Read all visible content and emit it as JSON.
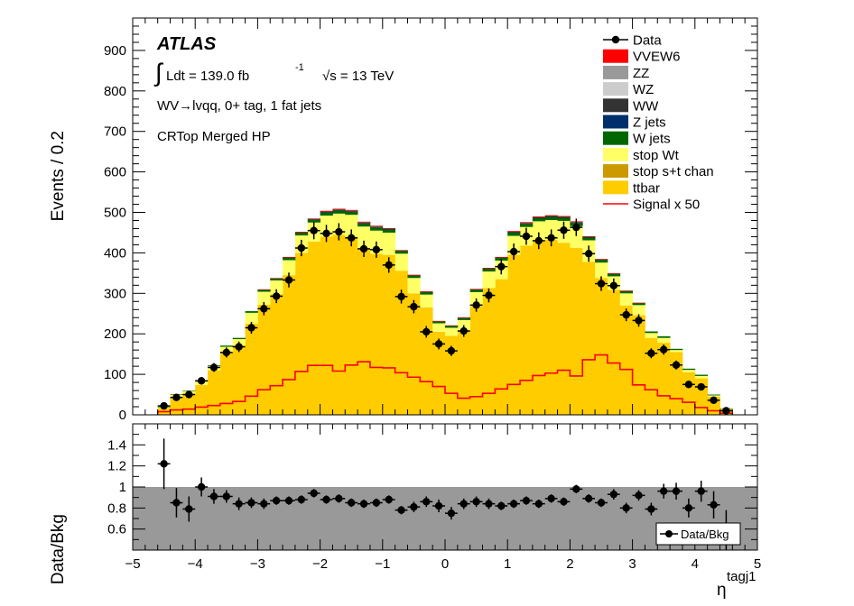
{
  "chart_data": {
    "type": "bar",
    "stacked": true,
    "atlas_label": "ATLAS",
    "lumi_prefix": "Ldt = 139.0 fb",
    "lumi_exp": "-1",
    "energy": "√s = 13 TeV",
    "region_line1": "WV→lvqq, 0+ tag, 1 fat jets",
    "region_line2": "CRTop Merged HP",
    "ylabel_top": "Events / 0.2",
    "ylabel_bottom": "Data/Bkg",
    "xlabel": "η",
    "xlabel_sup": "tagj1",
    "xlim": [
      -5,
      5
    ],
    "ylim_top": [
      0,
      980
    ],
    "ylim_bottom": [
      0.4,
      1.6
    ],
    "xticks": [
      -5,
      -4,
      -3,
      -2,
      -1,
      0,
      1,
      2,
      3,
      4,
      5
    ],
    "xtick_labels": [
      "−5",
      "−4",
      "−3",
      "−2",
      "−1",
      "0",
      "1",
      "2",
      "3",
      "4",
      "5"
    ],
    "yticks_top": [
      0,
      100,
      200,
      300,
      400,
      500,
      600,
      700,
      800,
      900
    ],
    "yticks_bottom": [
      0.6,
      0.8,
      1,
      1.2,
      1.4
    ],
    "ytick_labels_bottom": [
      "0.6",
      "0.8",
      "1",
      "1.2",
      "1.4"
    ],
    "bin_edges": [
      -4.6,
      -4.4,
      -4.2,
      -4.0,
      -3.8,
      -3.6,
      -3.4,
      -3.2,
      -3.0,
      -2.8,
      -2.6,
      -2.4,
      -2.2,
      -2.0,
      -1.8,
      -1.6,
      -1.4,
      -1.2,
      -1.0,
      -0.8,
      -0.6,
      -0.4,
      -0.2,
      0.0,
      0.2,
      0.4,
      0.6,
      0.8,
      1.0,
      1.2,
      1.4,
      1.6,
      1.8,
      2.0,
      2.2,
      2.4,
      2.6,
      2.8,
      3.0,
      3.2,
      3.4,
      3.6,
      3.8,
      4.0,
      4.2,
      4.4,
      4.6
    ],
    "bin_centers": [
      -4.5,
      -4.3,
      -4.1,
      -3.9,
      -3.7,
      -3.5,
      -3.3,
      -3.1,
      -2.9,
      -2.7,
      -2.5,
      -2.3,
      -2.1,
      -1.9,
      -1.7,
      -1.5,
      -1.3,
      -1.1,
      -0.9,
      -0.7,
      -0.5,
      -0.3,
      -0.1,
      0.1,
      0.3,
      0.5,
      0.7,
      0.9,
      1.1,
      1.3,
      1.5,
      1.7,
      1.9,
      2.1,
      2.3,
      2.5,
      2.7,
      2.9,
      3.1,
      3.3,
      3.5,
      3.7,
      3.9,
      4.1,
      4.3,
      4.5
    ],
    "series": [
      {
        "name": "ttbar",
        "color": "#ffcc00",
        "values": [
          17,
          45,
          53,
          74,
          110,
          155,
          172,
          225,
          272,
          298,
          345,
          400,
          428,
          440,
          445,
          440,
          410,
          398,
          395,
          356,
          300,
          265,
          205,
          195,
          210,
          268,
          313,
          335,
          395,
          418,
          430,
          432,
          425,
          412,
          378,
          338,
          309,
          270,
          246,
          190,
          178,
          155,
          105,
          90,
          45,
          14
        ]
      },
      {
        "name": "stop s+t chan",
        "color": "#cc9900",
        "values": [
          0,
          0,
          0,
          0,
          0,
          0,
          0,
          0,
          0,
          0,
          0,
          0,
          0,
          0,
          0,
          0,
          0,
          0,
          0,
          0,
          0,
          0,
          0,
          0,
          0,
          0,
          0,
          0,
          0,
          0,
          0,
          0,
          0,
          0,
          0,
          0,
          0,
          0,
          0,
          0,
          0,
          0,
          0,
          0,
          0,
          0
        ]
      },
      {
        "name": "stop Wt",
        "color": "#ffff66",
        "values": [
          2,
          5,
          6,
          8,
          10,
          13,
          15,
          27,
          32,
          34,
          37,
          43,
          47,
          52,
          52,
          54,
          55,
          57,
          55,
          42,
          38,
          32,
          21,
          20,
          24,
          35,
          41,
          46,
          47,
          46,
          48,
          49,
          54,
          54,
          53,
          38,
          33,
          30,
          25,
          12,
          12,
          5,
          6,
          6,
          3,
          1
        ]
      },
      {
        "name": "W jets",
        "color": "#006600",
        "values": [
          1,
          1,
          1,
          2,
          2,
          3,
          3,
          4,
          5,
          5,
          6,
          7,
          7,
          8,
          8,
          8,
          8,
          8,
          8,
          7,
          6,
          6,
          5,
          5,
          5,
          6,
          7,
          7,
          8,
          8,
          8,
          8,
          8,
          8,
          7,
          7,
          6,
          6,
          5,
          4,
          4,
          3,
          3,
          3,
          2,
          1
        ]
      },
      {
        "name": "Z jets",
        "color": "#002f6c",
        "values": [
          0,
          0,
          0,
          0,
          0,
          0,
          0,
          0,
          0,
          0,
          0,
          0,
          1,
          1,
          1,
          1,
          1,
          1,
          1,
          0,
          0,
          0,
          0,
          0,
          0,
          0,
          0,
          0,
          1,
          1,
          1,
          1,
          1,
          1,
          1,
          0,
          0,
          0,
          0,
          0,
          0,
          0,
          0,
          0,
          0,
          0
        ]
      },
      {
        "name": "WW",
        "color": "#333333",
        "values": [
          0,
          0,
          0,
          0,
          0,
          0,
          0,
          0,
          0,
          0,
          1,
          1,
          1,
          1,
          1,
          1,
          1,
          1,
          1,
          1,
          1,
          1,
          0,
          0,
          1,
          1,
          1,
          1,
          1,
          1,
          1,
          1,
          1,
          1,
          1,
          1,
          1,
          0,
          0,
          0,
          0,
          0,
          0,
          0,
          0,
          0
        ]
      },
      {
        "name": "WZ",
        "color": "#cccccc",
        "values": [
          0,
          0,
          0,
          0,
          0,
          0,
          0,
          0,
          0,
          0,
          0,
          0,
          0,
          0,
          0,
          0,
          0,
          0,
          0,
          0,
          0,
          0,
          0,
          0,
          0,
          0,
          0,
          0,
          0,
          0,
          0,
          0,
          0,
          0,
          0,
          0,
          0,
          0,
          0,
          0,
          0,
          0,
          0,
          0,
          0,
          0
        ]
      },
      {
        "name": "ZZ",
        "color": "#999999",
        "values": [
          0,
          0,
          0,
          0,
          0,
          0,
          0,
          0,
          0,
          0,
          0,
          0,
          0,
          0,
          0,
          0,
          0,
          0,
          0,
          0,
          0,
          0,
          0,
          0,
          0,
          0,
          0,
          0,
          0,
          0,
          0,
          0,
          0,
          0,
          0,
          0,
          0,
          0,
          0,
          0,
          0,
          0,
          0,
          0,
          0,
          0
        ]
      },
      {
        "name": "VVEW6",
        "color": "#ff0000",
        "values": [
          0,
          0,
          0,
          0,
          0,
          0,
          0,
          0,
          1,
          1,
          1,
          1,
          1,
          2,
          2,
          2,
          2,
          2,
          1,
          1,
          1,
          1,
          1,
          1,
          1,
          1,
          1,
          1,
          2,
          2,
          2,
          2,
          2,
          2,
          1,
          1,
          1,
          1,
          1,
          0,
          0,
          0,
          0,
          0,
          0,
          0
        ]
      }
    ],
    "data": {
      "name": "Data",
      "values": [
        22,
        43,
        50,
        84,
        117,
        154,
        168,
        215,
        262,
        293,
        333,
        412,
        455,
        448,
        452,
        437,
        410,
        408,
        370,
        292,
        267,
        205,
        175,
        158,
        207,
        271,
        295,
        366,
        403,
        441,
        430,
        437,
        456,
        463,
        398,
        324,
        319,
        247,
        233,
        152,
        161,
        123,
        75,
        69,
        36,
        10
      ]
    },
    "signal": {
      "name": "Signal x 50",
      "color": "#ff0000",
      "values": [
        8,
        12,
        14,
        19,
        23,
        28,
        33,
        46,
        62,
        72,
        87,
        107,
        122,
        122,
        108,
        123,
        131,
        117,
        116,
        104,
        93,
        82,
        70,
        53,
        41,
        45,
        53,
        64,
        75,
        85,
        97,
        103,
        110,
        96,
        136,
        148,
        128,
        112,
        74,
        62,
        47,
        40,
        31,
        18,
        10,
        4
      ]
    },
    "ratio": {
      "name": "Data/Bkg",
      "values": [
        1.22,
        0.85,
        0.79,
        1.0,
        0.91,
        0.91,
        0.84,
        0.85,
        0.84,
        0.87,
        0.87,
        0.88,
        0.94,
        0.88,
        0.89,
        0.85,
        0.84,
        0.85,
        0.88,
        0.78,
        0.81,
        0.86,
        0.82,
        0.75,
        0.84,
        0.86,
        0.84,
        0.82,
        0.84,
        0.87,
        0.84,
        0.89,
        0.86,
        0.98,
        0.89,
        0.85,
        0.93,
        0.8,
        0.92,
        0.79,
        0.96,
        0.96,
        0.8,
        0.96,
        0.83,
        0.59
      ],
      "errors": [
        0.24,
        0.14,
        0.12,
        0.09,
        0.07,
        0.06,
        0.06,
        0.05,
        0.05,
        0.04,
        0.04,
        0.04,
        0.04,
        0.04,
        0.04,
        0.04,
        0.04,
        0.04,
        0.04,
        0.04,
        0.05,
        0.05,
        0.06,
        0.06,
        0.05,
        0.05,
        0.05,
        0.04,
        0.04,
        0.04,
        0.04,
        0.04,
        0.04,
        0.04,
        0.04,
        0.04,
        0.05,
        0.05,
        0.05,
        0.06,
        0.07,
        0.08,
        0.09,
        0.1,
        0.13,
        0.19
      ],
      "band": [
        0.0,
        1.0
      ]
    },
    "legend": {
      "position": "top-right",
      "entries": [
        {
          "label": "Data",
          "kind": "marker",
          "color": "#000000"
        },
        {
          "label": "VVEW6",
          "kind": "box",
          "color": "#ff0000"
        },
        {
          "label": "ZZ",
          "kind": "box",
          "color": "#999999"
        },
        {
          "label": "WZ",
          "kind": "box",
          "color": "#cccccc"
        },
        {
          "label": "WW",
          "kind": "box",
          "color": "#333333"
        },
        {
          "label": "Z jets",
          "kind": "box",
          "color": "#002f6c"
        },
        {
          "label": "W jets",
          "kind": "box",
          "color": "#006600"
        },
        {
          "label": "stop Wt",
          "kind": "box",
          "color": "#ffff66"
        },
        {
          "label": "stop s+t chan",
          "kind": "box",
          "color": "#cc9900"
        },
        {
          "label": "ttbar",
          "kind": "box",
          "color": "#ffcc00"
        },
        {
          "label": "Signal x 50",
          "kind": "line",
          "color": "#ff0000"
        }
      ],
      "ratio_entry": "Data/Bkg"
    },
    "grid": false
  }
}
